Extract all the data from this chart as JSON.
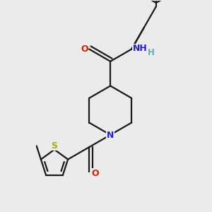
{
  "bg_color": "#ebebeb",
  "bond_color": "#1a1a1a",
  "N_color": "#2222cc",
  "O_color": "#cc2200",
  "S_color": "#aaaa00",
  "H_color": "#6aacac",
  "lw": 1.6,
  "figsize": [
    3.0,
    3.0
  ],
  "dpi": 100,
  "xlim": [
    -0.55,
    1.05
  ],
  "ylim": [
    -1.15,
    1.25
  ]
}
